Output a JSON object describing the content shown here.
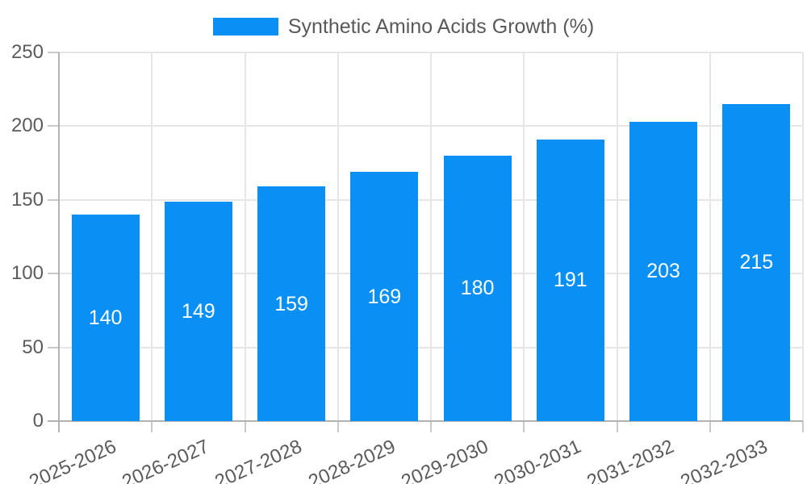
{
  "chart_data": {
    "type": "bar",
    "title": "Synthetic Amino Acids Growth (%)",
    "categories": [
      "2025-2026",
      "2026-2027",
      "2027-2028",
      "2028-2029",
      "2029-2030",
      "2030-2031",
      "2031-2032",
      "2032-2033"
    ],
    "series": [
      {
        "name": "Synthetic Amino Acids Growth (%)",
        "values": [
          140,
          149,
          159,
          169,
          180,
          191,
          203,
          215
        ]
      }
    ],
    "value_labels": [
      "140",
      "149",
      "159",
      "169",
      "180",
      "191",
      "203",
      "215"
    ],
    "xlabel": "",
    "ylabel": "",
    "ylim": [
      0,
      250
    ],
    "y_ticks": [
      0,
      50,
      100,
      150,
      200,
      250
    ],
    "grid": "on",
    "legend_position": "top-center",
    "colors": {
      "bar": "#0a90f5",
      "value_label": "#ffffff",
      "axis_line": "#b3b3b3",
      "tick_line": "#c9c9c9",
      "grid_line": "#e6e6e6",
      "text": "#5b5b5b",
      "legend_text": "#595959",
      "background": "#ffffff"
    }
  }
}
